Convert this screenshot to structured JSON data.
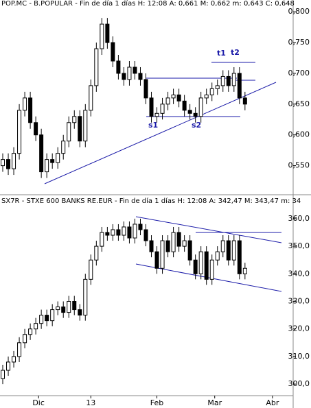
{
  "chart_data": [
    {
      "type": "candlestick",
      "title": "POP.MC - B.POPULAR - Fin de día 1 días H: 12:08 A: 0,661 M: 0,662 m: 0,643 C: 0,648",
      "annotations": [
        "s1",
        "s2",
        "t1",
        "t2"
      ],
      "x": [
        -13,
        -11,
        -9,
        -7,
        -5,
        -3,
        -1,
        1,
        3,
        5,
        7,
        9,
        11,
        13,
        15,
        17,
        19,
        21,
        23,
        25,
        27,
        29,
        31,
        33,
        35,
        37,
        39,
        41,
        43,
        45,
        47,
        49,
        51,
        53,
        55,
        57,
        59,
        61,
        63,
        65,
        67,
        69,
        71,
        73,
        75
      ],
      "open": [
        0.55,
        0.56,
        0.545,
        0.57,
        0.64,
        0.66,
        0.62,
        0.6,
        0.54,
        0.56,
        0.555,
        0.57,
        0.59,
        0.62,
        0.63,
        0.59,
        0.64,
        0.68,
        0.74,
        0.78,
        0.75,
        0.72,
        0.7,
        0.69,
        0.71,
        0.7,
        0.69,
        0.66,
        0.63,
        0.635,
        0.65,
        0.66,
        0.665,
        0.655,
        0.64,
        0.635,
        0.63,
        0.66,
        0.665,
        0.675,
        0.68,
        0.695,
        0.68,
        0.7,
        0.66
      ],
      "high": [
        0.57,
        0.57,
        0.58,
        0.65,
        0.67,
        0.67,
        0.63,
        0.61,
        0.57,
        0.57,
        0.58,
        0.6,
        0.63,
        0.64,
        0.64,
        0.65,
        0.69,
        0.75,
        0.79,
        0.79,
        0.76,
        0.73,
        0.71,
        0.72,
        0.72,
        0.71,
        0.7,
        0.67,
        0.645,
        0.66,
        0.67,
        0.675,
        0.675,
        0.665,
        0.65,
        0.645,
        0.67,
        0.675,
        0.685,
        0.69,
        0.705,
        0.705,
        0.71,
        0.71,
        0.67
      ],
      "low": [
        0.54,
        0.535,
        0.535,
        0.56,
        0.63,
        0.61,
        0.59,
        0.53,
        0.53,
        0.545,
        0.545,
        0.56,
        0.58,
        0.61,
        0.58,
        0.58,
        0.63,
        0.67,
        0.73,
        0.74,
        0.71,
        0.69,
        0.68,
        0.68,
        0.69,
        0.68,
        0.65,
        0.62,
        0.62,
        0.625,
        0.64,
        0.65,
        0.645,
        0.63,
        0.625,
        0.62,
        0.62,
        0.65,
        0.655,
        0.665,
        0.67,
        0.67,
        0.67,
        0.65,
        0.64
      ],
      "close": [
        0.56,
        0.545,
        0.57,
        0.64,
        0.66,
        0.62,
        0.6,
        0.54,
        0.56,
        0.555,
        0.57,
        0.59,
        0.62,
        0.63,
        0.59,
        0.64,
        0.68,
        0.74,
        0.78,
        0.75,
        0.72,
        0.7,
        0.69,
        0.71,
        0.7,
        0.69,
        0.66,
        0.63,
        0.635,
        0.65,
        0.66,
        0.665,
        0.655,
        0.64,
        0.635,
        0.63,
        0.66,
        0.665,
        0.675,
        0.68,
        0.695,
        0.68,
        0.7,
        0.66,
        0.65
      ],
      "xlim": [
        -14,
        92
      ],
      "ylim": [
        0.505,
        0.808
      ],
      "yticks": [
        {
          "value": 0.55,
          "label": "0,550"
        },
        {
          "value": 0.6,
          "label": "0,600"
        },
        {
          "value": 0.65,
          "label": "0,650"
        },
        {
          "value": 0.7,
          "label": "0,700"
        },
        {
          "value": 0.75,
          "label": "0,750"
        },
        {
          "value": 0.8,
          "label": "0,800"
        }
      ]
    },
    {
      "type": "candlestick",
      "title": "SX7R - STXE 600 BANKS RE.EUR - Fin de día 1 días H: 12:08 A: 342,47 M: 343,47 m: 34",
      "x": [
        -13,
        -11,
        -9,
        -7,
        -5,
        -3,
        -1,
        1,
        3,
        5,
        7,
        9,
        11,
        13,
        15,
        17,
        19,
        21,
        23,
        25,
        27,
        29,
        31,
        33,
        35,
        37,
        39,
        41,
        43,
        45,
        47,
        49,
        51,
        53,
        55,
        57,
        59,
        61,
        63,
        65,
        67,
        69,
        71,
        73,
        75
      ],
      "open": [
        302,
        305,
        308,
        310,
        315,
        318,
        320,
        322,
        325,
        323,
        327,
        328,
        326,
        330,
        327,
        325,
        338,
        345,
        350,
        355,
        354,
        356,
        354,
        357,
        353,
        358,
        356,
        352,
        348,
        342,
        352,
        348,
        355,
        350,
        352,
        345,
        340,
        348,
        338,
        345,
        348,
        352,
        345,
        352,
        340
      ],
      "high": [
        307,
        310,
        312,
        317,
        320,
        322,
        324,
        327,
        327,
        329,
        330,
        330,
        332,
        332,
        329,
        340,
        347,
        352,
        357,
        357,
        358,
        358,
        359,
        359,
        360,
        360,
        358,
        354,
        350,
        354,
        354,
        357,
        357,
        354,
        354,
        347,
        350,
        350,
        347,
        350,
        354,
        354,
        354,
        354,
        344
      ],
      "low": [
        300,
        303,
        306,
        308,
        313,
        316,
        318,
        320,
        321,
        321,
        325,
        324,
        324,
        325,
        323,
        323,
        336,
        343,
        348,
        352,
        352,
        352,
        352,
        351,
        351,
        354,
        350,
        346,
        340,
        340,
        346,
        346,
        348,
        348,
        343,
        338,
        338,
        336,
        336,
        343,
        346,
        343,
        343,
        338,
        338
      ],
      "close": [
        305,
        308,
        310,
        315,
        318,
        320,
        322,
        325,
        323,
        327,
        328,
        326,
        330,
        327,
        325,
        338,
        345,
        350,
        355,
        354,
        356,
        354,
        357,
        353,
        358,
        356,
        352,
        348,
        342,
        352,
        348,
        355,
        350,
        352,
        345,
        340,
        348,
        338,
        345,
        348,
        352,
        345,
        352,
        340,
        342
      ],
      "xlim": [
        -14,
        92
      ],
      "ylim": [
        296.3,
        364.7
      ],
      "yticks": [
        {
          "value": 300,
          "label": "300,0"
        },
        {
          "value": 310,
          "label": "310,0"
        },
        {
          "value": 320,
          "label": "320,0"
        },
        {
          "value": 330,
          "label": "330,0"
        },
        {
          "value": 340,
          "label": "340,0"
        },
        {
          "value": 350,
          "label": "350,0"
        },
        {
          "value": 360,
          "label": "360,0"
        }
      ],
      "xticks": [
        {
          "value": 0,
          "label": "Dic"
        },
        {
          "value": 19,
          "label": "13"
        },
        {
          "value": 43,
          "label": "Feb"
        },
        {
          "value": 64,
          "label": "Mar"
        },
        {
          "value": 85,
          "label": "Abr"
        }
      ]
    }
  ]
}
